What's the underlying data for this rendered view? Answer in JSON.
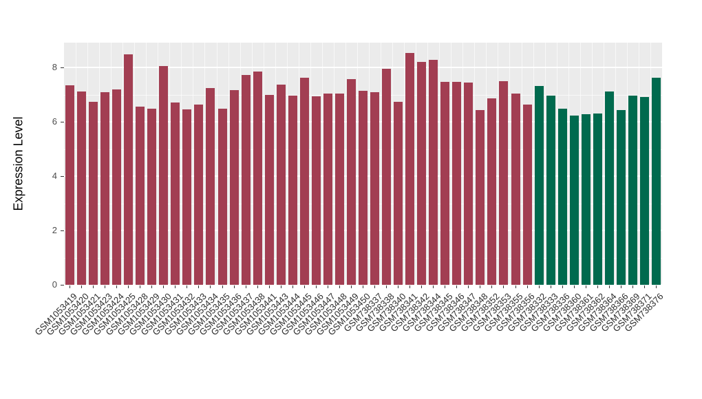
{
  "chart_data": {
    "type": "bar",
    "title": "",
    "xlabel": "",
    "ylabel": "Expression Level",
    "ylim": [
      0,
      8.9
    ],
    "yticks": [
      0,
      2,
      4,
      6,
      8
    ],
    "grid": true,
    "legend_position": "none",
    "panel_background": "#EBEBEB",
    "grid_color": "#FFFFFF",
    "categories": [
      "GSM1053419",
      "GSM1053420",
      "GSM1053421",
      "GSM1053423",
      "GSM1053424",
      "GSM1053425",
      "GSM1053428",
      "GSM1053429",
      "GSM1053430",
      "GSM1053431",
      "GSM1053432",
      "GSM1053433",
      "GSM1053434",
      "GSM1053435",
      "GSM1053436",
      "GSM1053437",
      "GSM1053438",
      "GSM1053441",
      "GSM1053443",
      "GSM1053444",
      "GSM1053445",
      "GSM1053446",
      "GSM1053447",
      "GSM1053448",
      "GSM1053449",
      "GSM1053450",
      "GSM738337",
      "GSM738338",
      "GSM738340",
      "GSM738341",
      "GSM738342",
      "GSM738344",
      "GSM738345",
      "GSM738346",
      "GSM738347",
      "GSM738348",
      "GSM738352",
      "GSM738353",
      "GSM738355",
      "GSM738356",
      "GSM738332",
      "GSM738333",
      "GSM738336",
      "GSM738360",
      "GSM738361",
      "GSM738362",
      "GSM738364",
      "GSM738366",
      "GSM738369",
      "GSM738371",
      "GSM738376"
    ],
    "values": [
      7.35,
      7.12,
      6.74,
      7.08,
      7.18,
      8.47,
      6.57,
      6.47,
      8.06,
      6.7,
      6.46,
      6.63,
      7.25,
      6.48,
      7.16,
      7.72,
      7.85,
      6.99,
      7.37,
      6.96,
      7.62,
      6.93,
      7.05,
      7.05,
      7.56,
      7.14,
      7.1,
      7.95,
      6.74,
      8.54,
      8.2,
      8.29,
      7.47,
      7.47,
      7.44,
      6.43,
      6.87,
      7.5,
      7.03,
      6.64,
      7.31,
      6.97,
      6.48,
      6.23,
      6.29,
      6.31,
      7.12,
      6.42,
      6.97,
      6.91,
      7.61
    ],
    "groups": [
      "red",
      "red",
      "red",
      "red",
      "red",
      "red",
      "red",
      "red",
      "red",
      "red",
      "red",
      "red",
      "red",
      "red",
      "red",
      "red",
      "red",
      "red",
      "red",
      "red",
      "red",
      "red",
      "red",
      "red",
      "red",
      "red",
      "red",
      "red",
      "red",
      "red",
      "red",
      "red",
      "red",
      "red",
      "red",
      "red",
      "red",
      "red",
      "red",
      "red",
      "green",
      "green",
      "green",
      "green",
      "green",
      "green",
      "green",
      "green",
      "green",
      "green",
      "green"
    ],
    "group_colors": {
      "red": "#A23E52",
      "green": "#006A4E"
    }
  }
}
